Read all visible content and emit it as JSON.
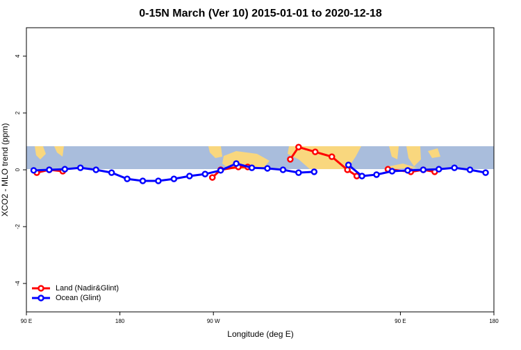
{
  "chart_data": {
    "type": "line",
    "title": "0-15N March (Ver 10)   2015-01-01 to 2020-12-18",
    "x_label": "Longitude (deg E)",
    "y_label": "XCO2 - MLO trend (ppm)",
    "xlim": [
      90,
      540
    ],
    "xticks": [
      {
        "value": 90,
        "label": "90 E"
      },
      180,
      {
        "value": 270,
        "label": "90 W"
      },
      {
        "value": 450,
        "label": "90 E"
      },
      {
        "value": 540,
        "label": "180"
      }
    ],
    "ylim": [
      -5,
      5
    ],
    "yticks": [
      -4,
      -2,
      0,
      2,
      4
    ],
    "legend": "bottom-left",
    "series": [
      {
        "name": "Land (Nadir&Glint)",
        "color": "#ff0000",
        "x": [
          100,
          112,
          125,
          null,
          269,
          277,
          294,
          303,
          null,
          344,
          352,
          368,
          384,
          399,
          408,
          null,
          438,
          460,
          472,
          483
        ],
        "values": [
          -0.1,
          0,
          -0.05,
          null,
          -0.27,
          0,
          0.1,
          0.1,
          null,
          0.37,
          0.8,
          0.63,
          0.46,
          0,
          -0.22,
          null,
          0.02,
          -0.07,
          0,
          -0.07
        ]
      },
      {
        "name": "Ocean (Glint)",
        "color": "#0000ff",
        "x": [
          97,
          112,
          127,
          142,
          157,
          172,
          187,
          202,
          217,
          232,
          247,
          262,
          277,
          292,
          307,
          322,
          337,
          352,
          367,
          null,
          400,
          413,
          427,
          442,
          457,
          472,
          487,
          502,
          517,
          532
        ],
        "values": [
          -0.02,
          0,
          0.02,
          0.07,
          0,
          -0.1,
          -0.32,
          -0.39,
          -0.39,
          -0.32,
          -0.22,
          -0.15,
          -0.02,
          0.22,
          0.07,
          0.05,
          0,
          -0.1,
          -0.07,
          null,
          0.17,
          -0.22,
          -0.17,
          -0.05,
          -0.02,
          0,
          0.02,
          0.07,
          0,
          -0.1
        ]
      }
    ]
  }
}
